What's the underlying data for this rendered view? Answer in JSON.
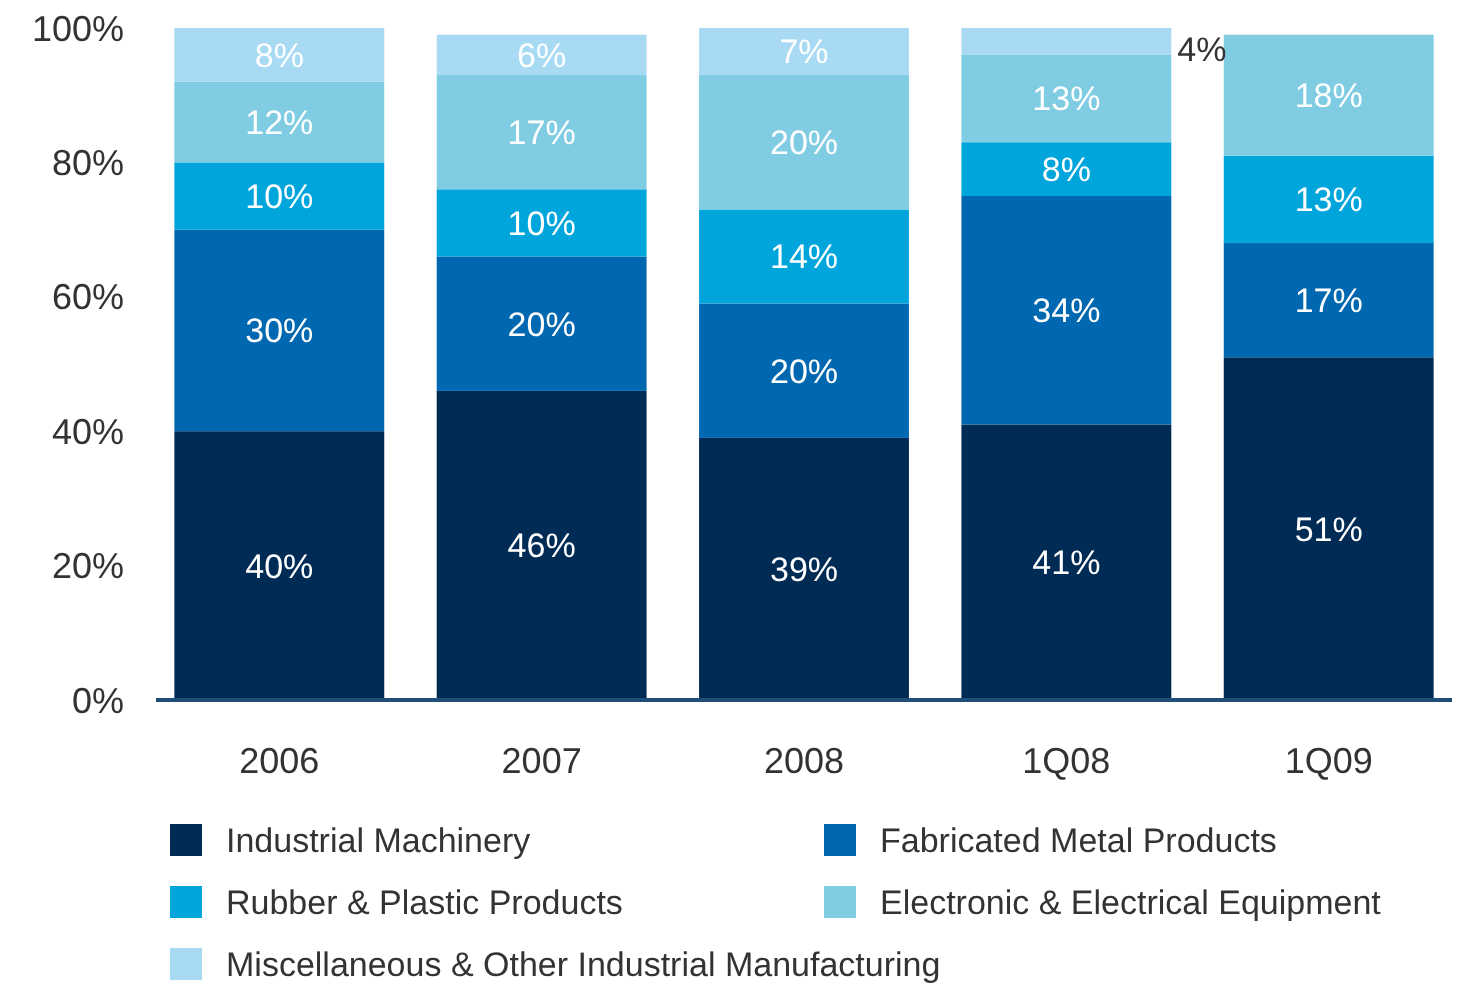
{
  "chart_data": {
    "type": "bar",
    "stacked": true,
    "categories": [
      "2006",
      "2007",
      "2008",
      "1Q08",
      "1Q09"
    ],
    "ylim": [
      0,
      100
    ],
    "yticks": [
      {
        "value": 0,
        "label": "0%"
      },
      {
        "value": 20,
        "label": "20%"
      },
      {
        "value": 40,
        "label": "40%"
      },
      {
        "value": 60,
        "label": "60%"
      },
      {
        "value": 80,
        "label": "80%"
      },
      {
        "value": 100,
        "label": "100%"
      }
    ],
    "grid": false,
    "legend": "bottom",
    "series": [
      {
        "name": "Industrial Machinery",
        "color": "#002b54",
        "values": [
          40,
          46,
          39,
          41,
          51
        ],
        "value_labels": [
          "40%",
          "46%",
          "39%",
          "41%",
          "51%"
        ]
      },
      {
        "name": "Fabricated Metal Products",
        "color": "#0068b0",
        "values": [
          30,
          20,
          20,
          34,
          17
        ],
        "value_labels": [
          "30%",
          "20%",
          "20%",
          "34%",
          "17%"
        ]
      },
      {
        "name": "Rubber & Plastic Products",
        "color": "#00a5dc",
        "values": [
          10,
          10,
          14,
          8,
          13
        ],
        "value_labels": [
          "10%",
          "10%",
          "14%",
          "8%",
          "13%"
        ]
      },
      {
        "name": "Electronic & Electrical Equipment",
        "color": "#80cde3",
        "values": [
          12,
          17,
          20,
          13,
          18
        ],
        "value_labels": [
          "12%",
          "17%",
          "20%",
          "13%",
          "18%"
        ]
      },
      {
        "name": "Miscellaneous & Other Industrial Manufacturing",
        "color": "#a8daf3",
        "values": [
          8,
          6,
          7,
          4,
          null
        ],
        "value_labels": [
          "8%",
          "6%",
          "7%",
          "4%",
          null
        ]
      }
    ]
  }
}
